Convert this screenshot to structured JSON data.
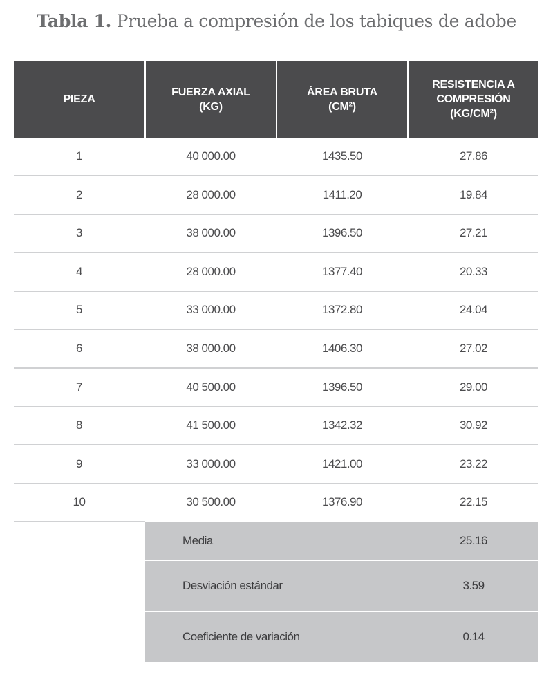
{
  "title": {
    "label": "Tabla 1.",
    "text": " Prueba a compresión de los tabiques de adobe"
  },
  "table": {
    "headers": [
      [
        "PIEZA"
      ],
      [
        "FUERZA AXIAL",
        "(KG)"
      ],
      [
        "ÁREA BRUTA",
        "(CM²)"
      ],
      [
        "RESISTENCIA A",
        "COMPRESIÓN",
        "(KG/CM²)"
      ]
    ],
    "rows": [
      [
        "1",
        "40 000.00",
        "1435.50",
        "27.86"
      ],
      [
        "2",
        "28 000.00",
        "1411.20",
        "19.84"
      ],
      [
        "3",
        "38 000.00",
        "1396.50",
        "27.21"
      ],
      [
        "4",
        "28 000.00",
        "1377.40",
        "20.33"
      ],
      [
        "5",
        "33 000.00",
        "1372.80",
        "24.04"
      ],
      [
        "6",
        "38 000.00",
        "1406.30",
        "27.02"
      ],
      [
        "7",
        "40 500.00",
        "1396.50",
        "29.00"
      ],
      [
        "8",
        "41 500.00",
        "1342.32",
        "30.92"
      ],
      [
        "9",
        "33 000.00",
        "1421.00",
        "23.22"
      ],
      [
        "10",
        "30 500.00",
        "1376.90",
        "22.15"
      ]
    ],
    "summary": [
      {
        "label": "Media",
        "value": "25.16"
      },
      {
        "label": "Desviación estándar",
        "value": "3.59"
      },
      {
        "label": "Coeficiente de variación",
        "value": "0.14"
      }
    ]
  },
  "colors": {
    "header_bg": "#4b4b4d",
    "summary_bg": "#c6c7c9",
    "rule": "#d0d1d3"
  }
}
